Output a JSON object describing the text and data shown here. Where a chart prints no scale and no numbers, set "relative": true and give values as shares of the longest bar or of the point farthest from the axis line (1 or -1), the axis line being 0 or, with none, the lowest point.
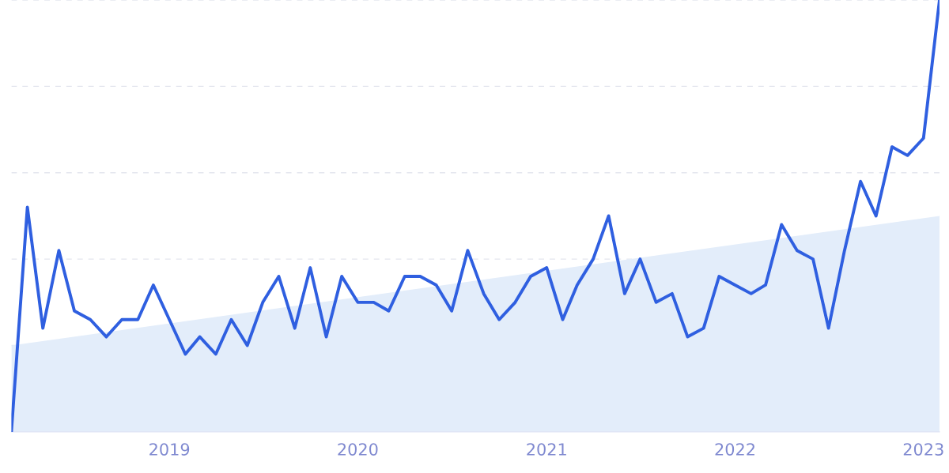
{
  "chart_data": {
    "type": "line",
    "relative": true,
    "grid": "y",
    "tick_labels": "x",
    "marker": "none",
    "line_style": "solid",
    "xlim": [
      "2018-03",
      "2023-02"
    ],
    "xticks": [
      {
        "value": "2019",
        "label": "2019"
      },
      {
        "value": "2020",
        "label": "2020"
      },
      {
        "value": "2021",
        "label": "2021"
      },
      {
        "value": "2022",
        "label": "2022"
      },
      {
        "value": "2023",
        "label": "2023"
      }
    ],
    "x": [
      "2018-03",
      "2018-04",
      "2018-05",
      "2018-06",
      "2018-07",
      "2018-08",
      "2018-09",
      "2018-10",
      "2018-11",
      "2018-12",
      "2019-01",
      "2019-02",
      "2019-03",
      "2019-04",
      "2019-05",
      "2019-06",
      "2019-07",
      "2019-08",
      "2019-09",
      "2019-10",
      "2019-11",
      "2019-12",
      "2020-01",
      "2020-02",
      "2020-03",
      "2020-04",
      "2020-05",
      "2020-06",
      "2020-07",
      "2020-08",
      "2020-09",
      "2020-10",
      "2020-11",
      "2020-12",
      "2021-01",
      "2021-02",
      "2021-03",
      "2021-04",
      "2021-05",
      "2021-06",
      "2021-07",
      "2021-08",
      "2021-09",
      "2021-10",
      "2021-11",
      "2021-12",
      "2022-01",
      "2022-02",
      "2022-03",
      "2022-04",
      "2022-05",
      "2022-06",
      "2022-07",
      "2022-08",
      "2022-09",
      "2022-10",
      "2022-11",
      "2022-12",
      "2023-01",
      "2023-02"
    ],
    "series": [
      {
        "type": "area",
        "color": "#e3edfa",
        "x": [
          "2018-03",
          "2023-02"
        ],
        "values": [
          0.2,
          0.5
        ]
      },
      {
        "color": "#2f5fe0",
        "values": [
          0,
          0.52,
          0.24,
          0.42,
          0.28,
          0.26,
          0.22,
          0.26,
          0.26,
          0.34,
          0.26,
          0.18,
          0.22,
          0.18,
          0.26,
          0.2,
          0.3,
          0.36,
          0.24,
          0.38,
          0.22,
          0.36,
          0.3,
          0.3,
          0.28,
          0.36,
          0.36,
          0.34,
          0.28,
          0.42,
          0.32,
          0.26,
          0.3,
          0.36,
          0.38,
          0.26,
          0.34,
          0.4,
          0.5,
          0.32,
          0.4,
          0.3,
          0.32,
          0.22,
          0.24,
          0.36,
          0.34,
          0.32,
          0.34,
          0.48,
          0.42,
          0.4,
          0.24,
          0.42,
          0.58,
          0.5,
          0.66,
          0.64,
          0.68,
          1.0
        ]
      }
    ]
  }
}
